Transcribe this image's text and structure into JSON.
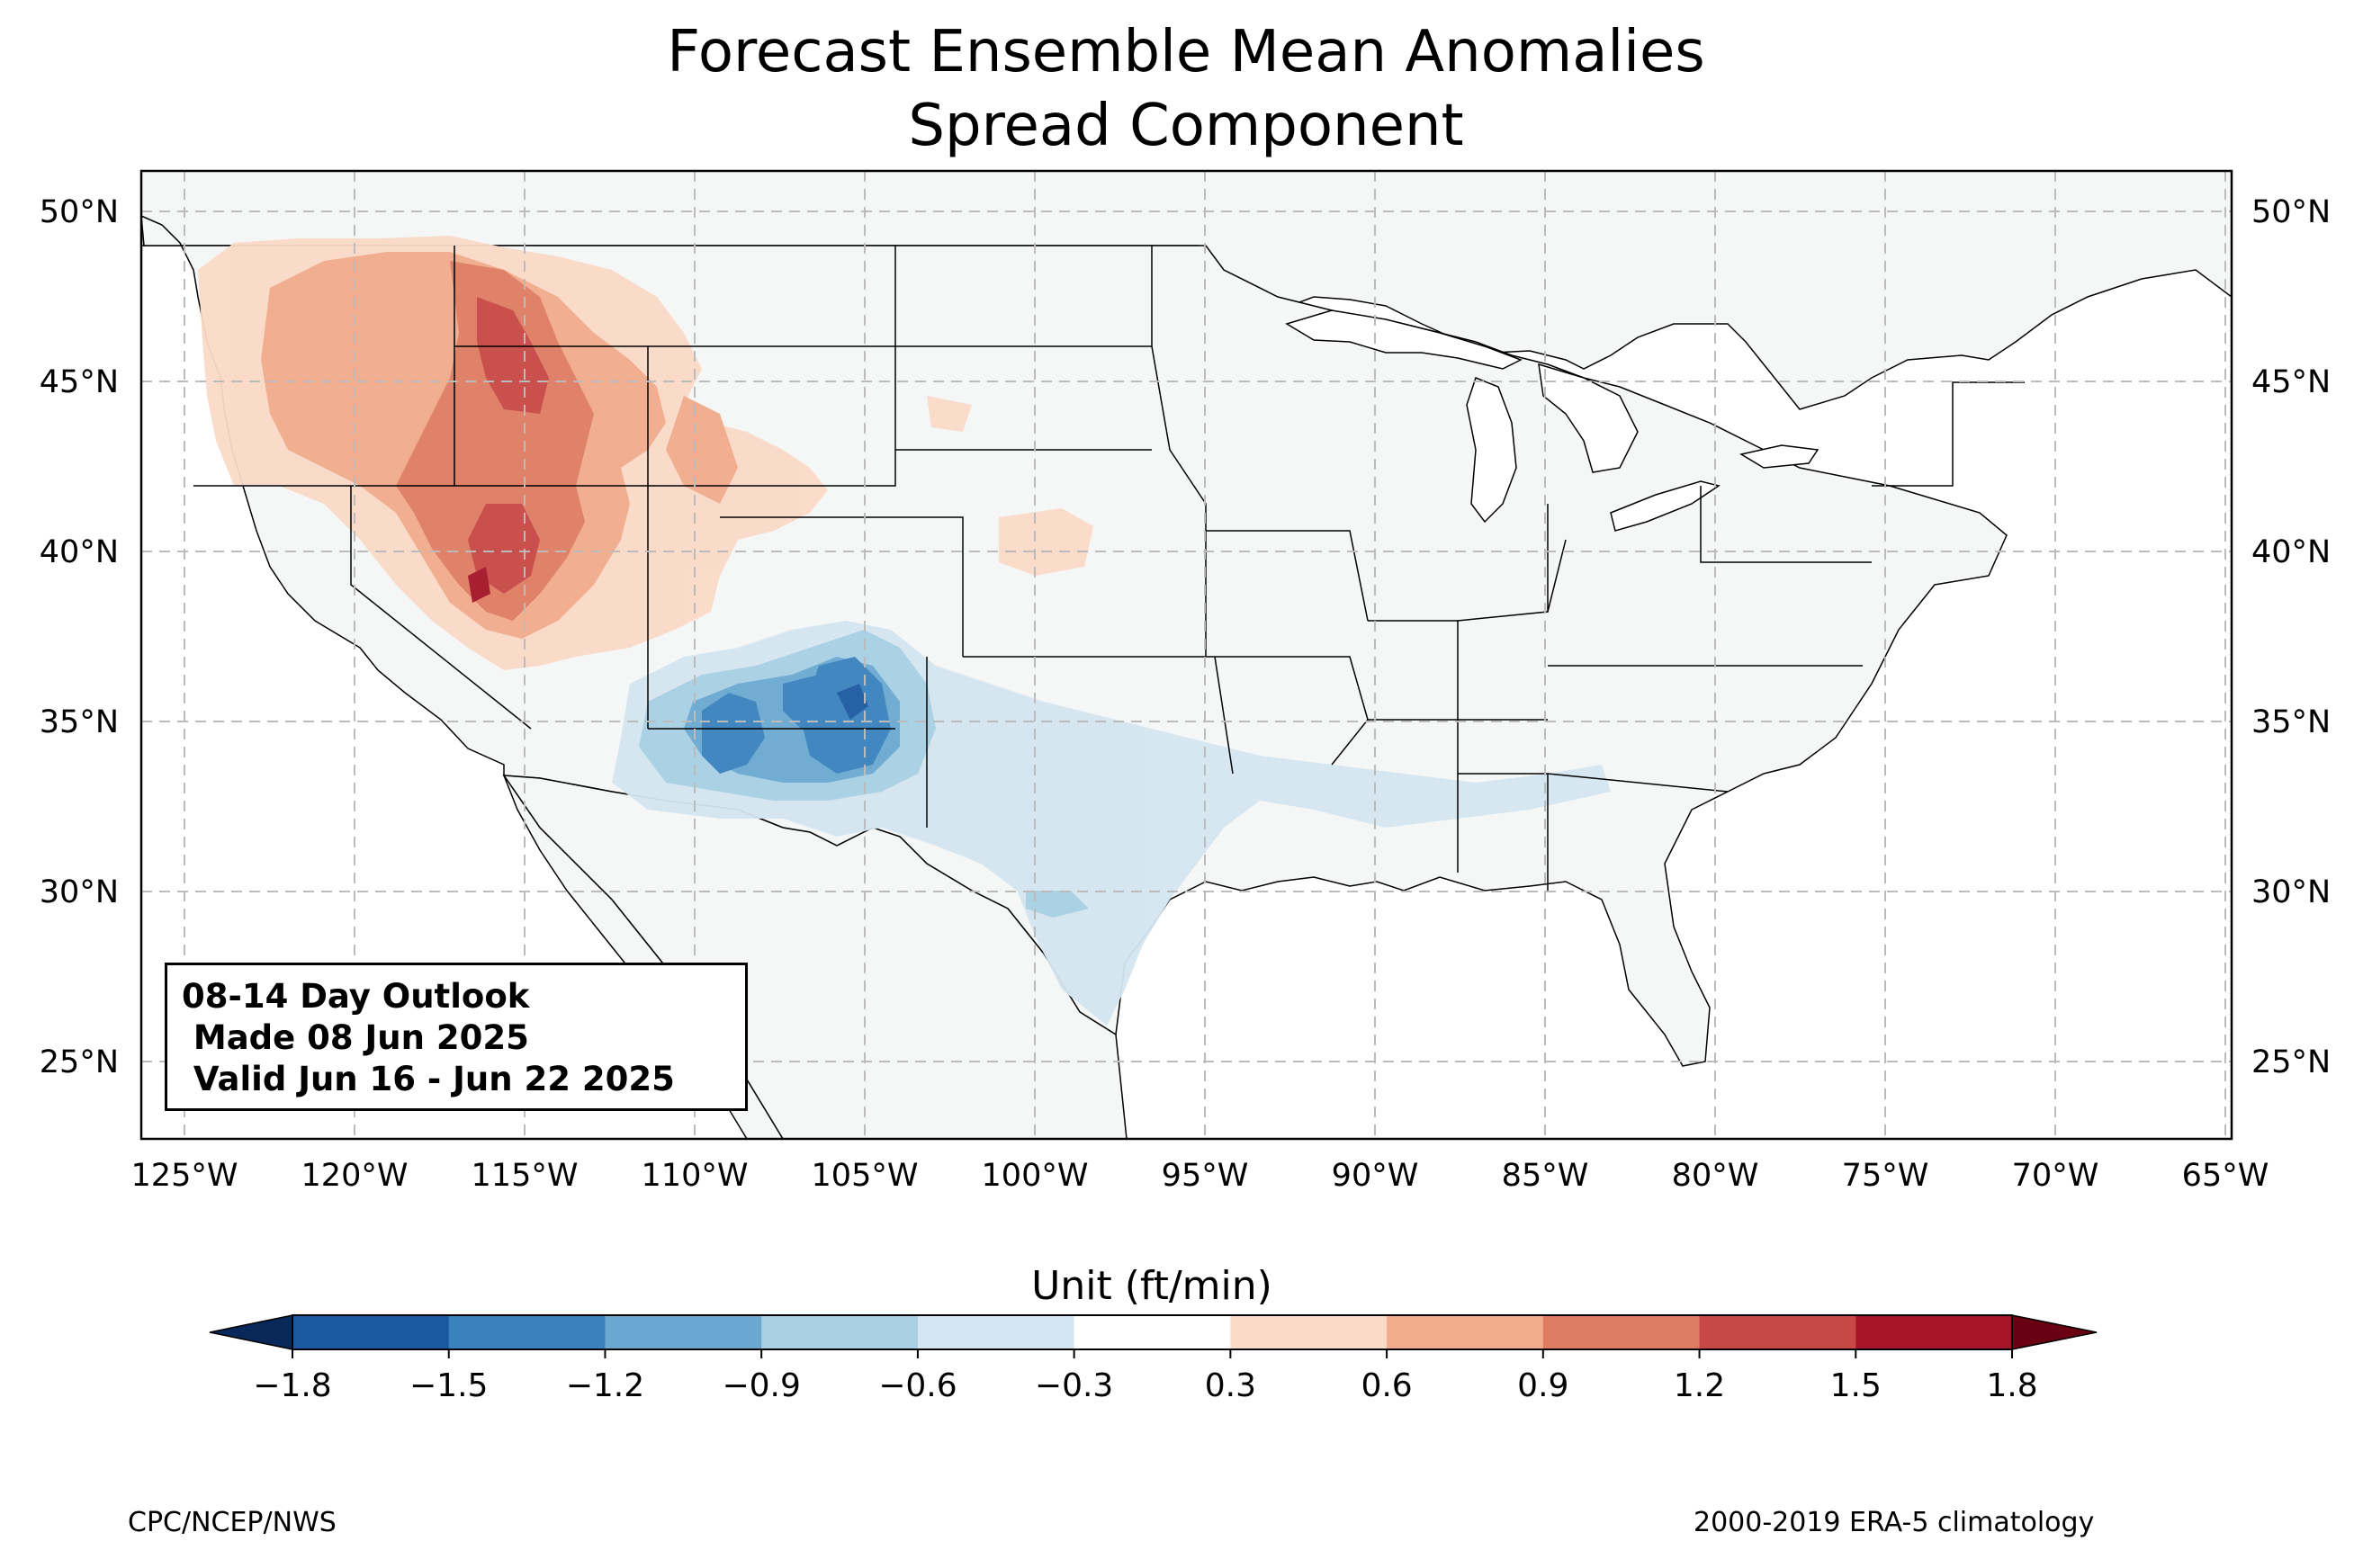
{
  "title": {
    "line1": "Forecast Ensemble Mean Anomalies",
    "line2": "Spread Component"
  },
  "map": {
    "extent_lon": [
      -126.3,
      -64.8
    ],
    "extent_lat": [
      22.8,
      51.2
    ],
    "lon_ticks": [
      "125°W",
      "120°W",
      "115°W",
      "110°W",
      "105°W",
      "100°W",
      "95°W",
      "90°W",
      "85°W",
      "80°W",
      "75°W",
      "70°W",
      "65°W"
    ],
    "lat_ticks": [
      "25°N",
      "30°N",
      "35°N",
      "40°N",
      "45°N",
      "50°N"
    ],
    "gridlines": true,
    "land_color": "#f5f7f7",
    "ocean_color": "#ffffff"
  },
  "info_box": {
    "line1": "08-14 Day Outlook",
    "line2": " Made 08 Jun 2025",
    "line3": " Valid Jun 16 - Jun 22 2025"
  },
  "colorbar": {
    "label": "Unit (ft/min)",
    "ticks": [
      "−1.8",
      "−1.5",
      "−1.2",
      "−0.9",
      "−0.6",
      "−0.3",
      "0.3",
      "0.6",
      "0.9",
      "1.2",
      "1.5",
      "1.8"
    ],
    "colors": [
      "#1a5aa0",
      "#3a82be",
      "#6aa8d2",
      "#a8cfe4",
      "#d4e6f1",
      "#ffffff",
      "#fbdac8",
      "#f2ab8c",
      "#de7c62",
      "#c84845",
      "#a51428"
    ],
    "under_color": "#08285a",
    "over_color": "#6a0013"
  },
  "footer": {
    "left": "CPC/NCEP/NWS",
    "right": "2000-2019 ERA-5 climatology"
  }
}
